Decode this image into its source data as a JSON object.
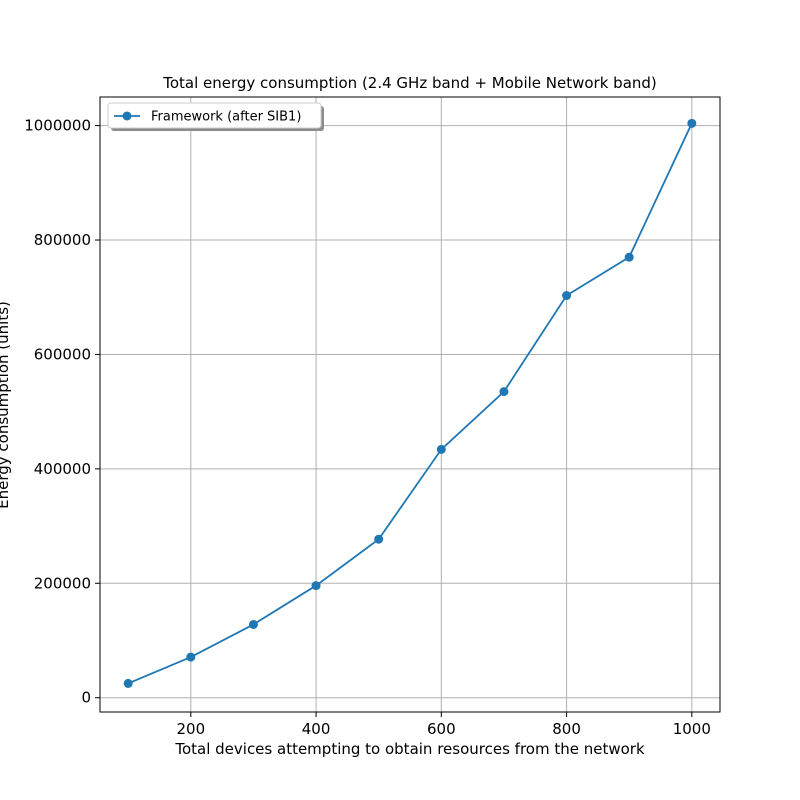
{
  "chart_data": {
    "type": "line",
    "title": "Total energy consumption (2.4 GHz band + Mobile Network band)",
    "xlabel": "Total devices attempting to obtain resources from the network",
    "ylabel": "Energy consumption (units)",
    "xlim": [
      55,
      1045
    ],
    "ylim": [
      -25000,
      1050000
    ],
    "xticks": [
      200,
      400,
      600,
      800,
      1000
    ],
    "yticks": [
      0,
      200000,
      400000,
      600000,
      800000,
      1000000
    ],
    "grid": true,
    "legend_position": "top-left",
    "x": [
      100,
      200,
      300,
      400,
      500,
      600,
      700,
      800,
      900,
      1000
    ],
    "series": [
      {
        "name": "Framework (after SIB1)",
        "color": "#1f77b4",
        "marker": "circle",
        "values": [
          25000,
          71000,
          128000,
          196000,
          277000,
          434000,
          535000,
          703000,
          770000,
          1004000
        ]
      }
    ]
  }
}
